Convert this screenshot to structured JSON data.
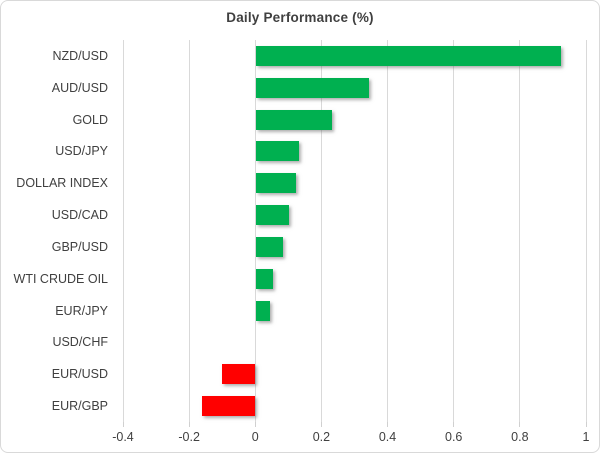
{
  "chart_data": {
    "type": "bar",
    "orientation": "horizontal",
    "title": "Daily Performance (%)",
    "categories": [
      "NZD/USD",
      "AUD/USD",
      "GOLD",
      "USD/JPY",
      "DOLLAR INDEX",
      "USD/CAD",
      "GBP/USD",
      "WTI CRUDE OIL",
      "EUR/JPY",
      "USD/CHF",
      "EUR/USD",
      "EUR/GBP"
    ],
    "values": [
      0.92,
      0.34,
      0.23,
      0.13,
      0.12,
      0.1,
      0.08,
      0.05,
      0.04,
      0.0,
      -0.1,
      -0.16
    ],
    "xlabel": "",
    "ylabel": "",
    "xlim": [
      -0.4,
      1.0
    ],
    "x_tick_labels": [
      "-0.4",
      "-0.2",
      "0",
      "0.2",
      "0.4",
      "0.6",
      "0.8",
      "1"
    ],
    "x_tick_values": [
      -0.4,
      -0.2,
      0,
      0.2,
      0.4,
      0.6,
      0.8,
      1
    ],
    "grid": "vertical",
    "legend": "none",
    "colors": {
      "positive": "#00b050",
      "negative": "#ff0000",
      "gridline": "#d9d9d9",
      "text": "#404040",
      "border": "#d9d9d9",
      "background": "#ffffff"
    }
  }
}
